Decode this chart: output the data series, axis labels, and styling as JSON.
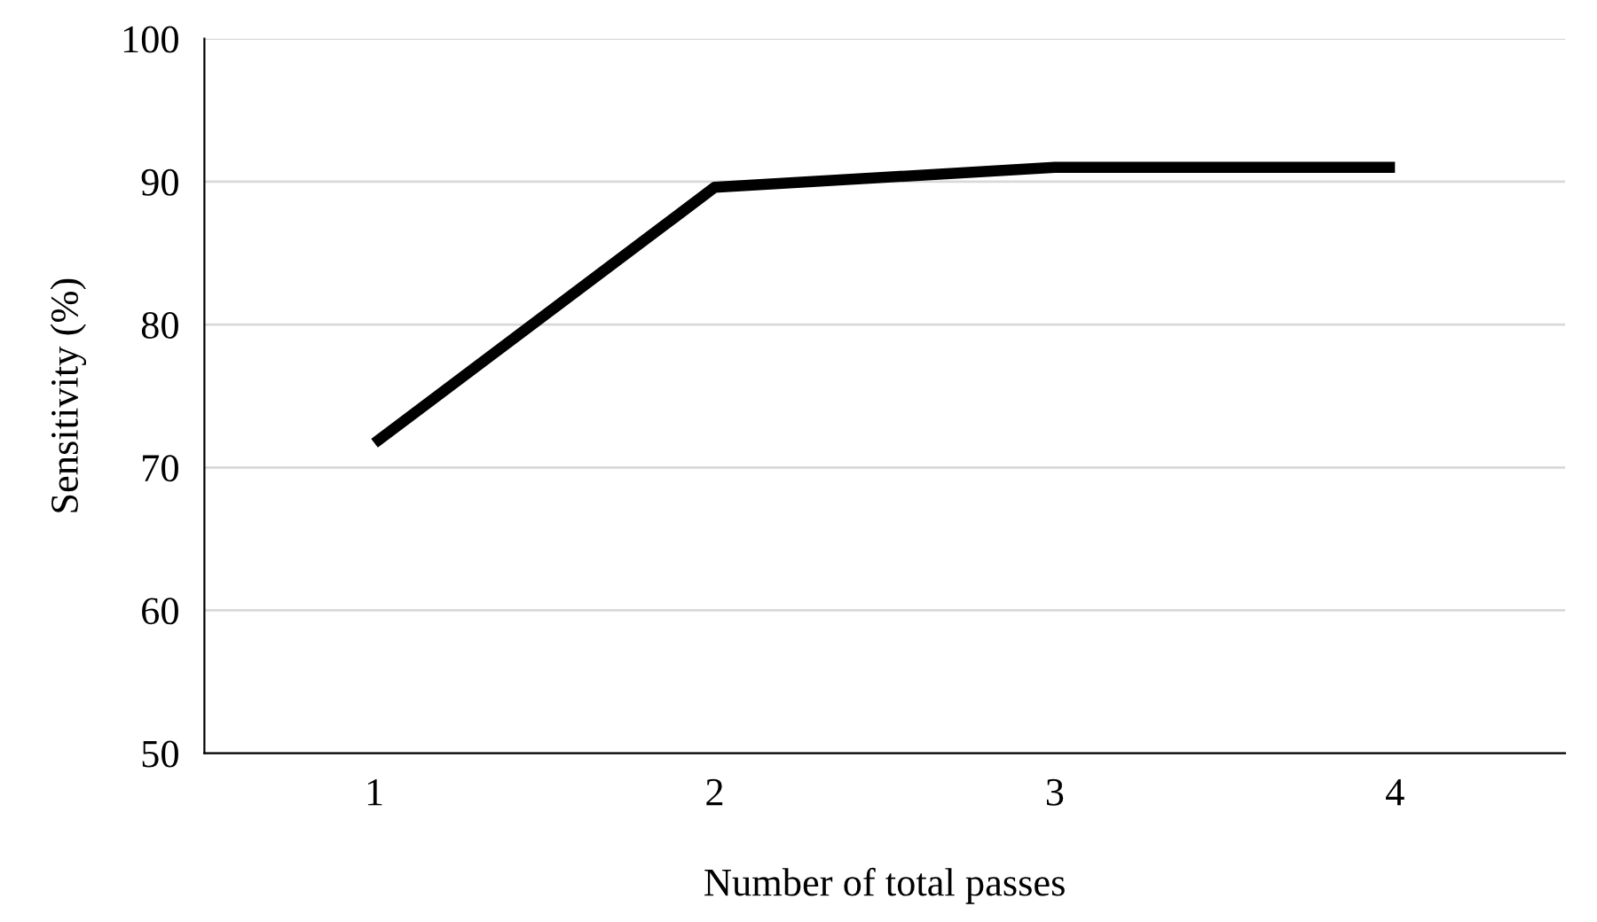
{
  "chart_data": {
    "type": "line",
    "xlabel": "Number of total passes",
    "ylabel": "Sensitivity (%)",
    "categories": [
      "1",
      "2",
      "3",
      "4"
    ],
    "series": [
      {
        "color": "#000000",
        "values": [
          71.7,
          89.6,
          91.0,
          91.0
        ]
      }
    ],
    "ylim": [
      50,
      100
    ],
    "yticks": [
      50,
      60,
      70,
      80,
      90,
      100
    ],
    "grid": "y",
    "marker": "none",
    "line_style": "solid",
    "legend": false
  }
}
